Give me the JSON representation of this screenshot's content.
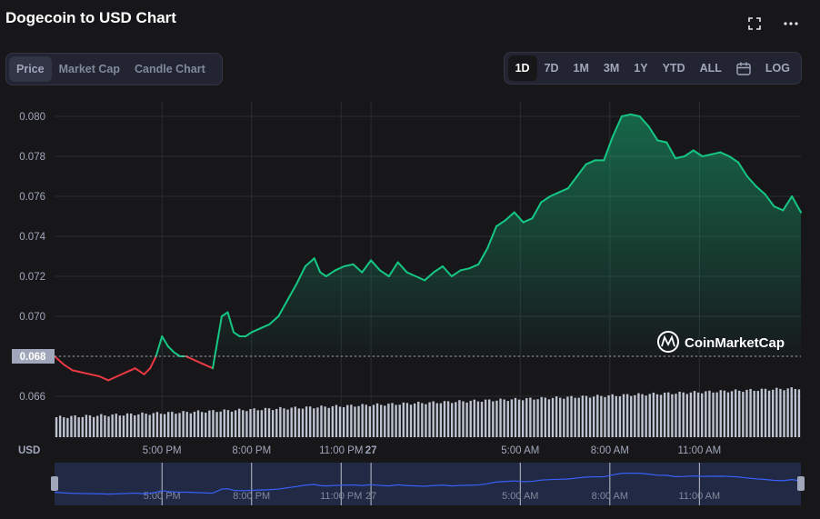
{
  "header": {
    "title": "Dogecoin to USD Chart",
    "fullscreen_icon": "fullscreen-icon",
    "more_icon": "more-icon"
  },
  "type_tabs": [
    {
      "label": "Price",
      "active": true
    },
    {
      "label": "Market Cap",
      "active": false
    },
    {
      "label": "Candle Chart",
      "active": false
    }
  ],
  "range_tabs": [
    {
      "label": "1D",
      "active": true
    },
    {
      "label": "7D",
      "active": false
    },
    {
      "label": "1M",
      "active": false
    },
    {
      "label": "3M",
      "active": false
    },
    {
      "label": "1Y",
      "active": false
    },
    {
      "label": "YTD",
      "active": false
    },
    {
      "label": "ALL",
      "active": false
    }
  ],
  "calendar_icon": "calendar-icon",
  "log_label": "LOG",
  "watermark": "CoinMarketCap",
  "colors": {
    "up": "#16c784",
    "down": "#ea3943",
    "background": "#17171a",
    "grid": "#2b2d33",
    "navigator_line": "#3861fb",
    "navigator_bg": "#222944"
  },
  "chart_data": {
    "type": "line",
    "ylabel": "USD",
    "ylim": [
      0.0645,
      0.0805
    ],
    "y_ticks": [
      "0.080",
      "0.078",
      "0.076",
      "0.074",
      "0.072",
      "0.070",
      "0.068",
      "0.066"
    ],
    "reference_price": 0.068,
    "reference_label": "0.068",
    "x_tick_labels": [
      "5:00 PM",
      "8:00 PM",
      "11:00 PM",
      "27",
      "5:00 AM",
      "8:00 AM",
      "11:00 AM"
    ],
    "x_tick_hours": [
      17,
      20,
      23,
      24,
      29,
      32,
      35
    ],
    "x_range_hours": [
      13.4,
      38.4
    ],
    "series": [
      {
        "x": [
          13.4,
          13.7,
          14.0,
          14.3,
          14.6,
          14.9,
          15.2,
          15.5,
          15.8,
          16.1,
          16.4,
          16.6,
          16.8,
          17.0,
          17.2,
          17.4,
          17.6,
          17.8,
          18.1,
          18.4,
          18.7,
          19.0,
          19.2,
          19.4,
          19.6,
          19.8,
          20.0,
          20.3,
          20.6,
          20.9,
          21.2,
          21.5,
          21.8,
          22.1,
          22.3,
          22.5,
          22.8,
          23.1,
          23.4,
          23.7,
          24.0,
          24.3,
          24.6,
          24.9,
          25.2,
          25.5,
          25.8,
          26.1,
          26.4,
          26.7,
          27.0,
          27.3,
          27.6,
          27.9,
          28.2,
          28.5,
          28.8,
          29.1,
          29.4,
          29.7,
          30.0,
          30.3,
          30.6,
          30.9,
          31.2,
          31.5,
          31.8,
          32.1,
          32.4,
          32.7,
          33.0,
          33.3,
          33.6,
          33.9,
          34.2,
          34.5,
          34.8,
          35.1,
          35.4,
          35.7,
          36.0,
          36.3,
          36.6,
          36.9,
          37.2,
          37.5,
          37.8,
          38.1,
          38.4
        ],
        "y": [
          0.068,
          0.0676,
          0.0673,
          0.0672,
          0.0671,
          0.067,
          0.0668,
          0.067,
          0.0672,
          0.0674,
          0.0671,
          0.0674,
          0.068,
          0.069,
          0.0685,
          0.0682,
          0.068,
          0.068,
          0.0678,
          0.0676,
          0.0674,
          0.07,
          0.0702,
          0.0692,
          0.069,
          0.069,
          0.0692,
          0.0694,
          0.0696,
          0.07,
          0.0708,
          0.0716,
          0.0725,
          0.0729,
          0.0722,
          0.072,
          0.0723,
          0.0725,
          0.0726,
          0.0722,
          0.0728,
          0.0723,
          0.072,
          0.0727,
          0.0722,
          0.072,
          0.0718,
          0.0722,
          0.0725,
          0.072,
          0.0723,
          0.0724,
          0.0726,
          0.0734,
          0.0745,
          0.0748,
          0.0752,
          0.0747,
          0.0749,
          0.0757,
          0.076,
          0.0762,
          0.0764,
          0.077,
          0.0776,
          0.0778,
          0.0778,
          0.079,
          0.08,
          0.0801,
          0.08,
          0.0795,
          0.0788,
          0.0787,
          0.0779,
          0.078,
          0.0783,
          0.078,
          0.0781,
          0.0782,
          0.078,
          0.0777,
          0.077,
          0.0765,
          0.0761,
          0.0755,
          0.0753,
          0.076,
          0.0752
        ]
      }
    ],
    "volume_count": 200,
    "navigator_x_labels": [
      "5:00 PM",
      "8:00 PM",
      "11:00 PM",
      "27",
      "5:00 AM",
      "8:00 AM",
      "11:00 AM"
    ]
  }
}
